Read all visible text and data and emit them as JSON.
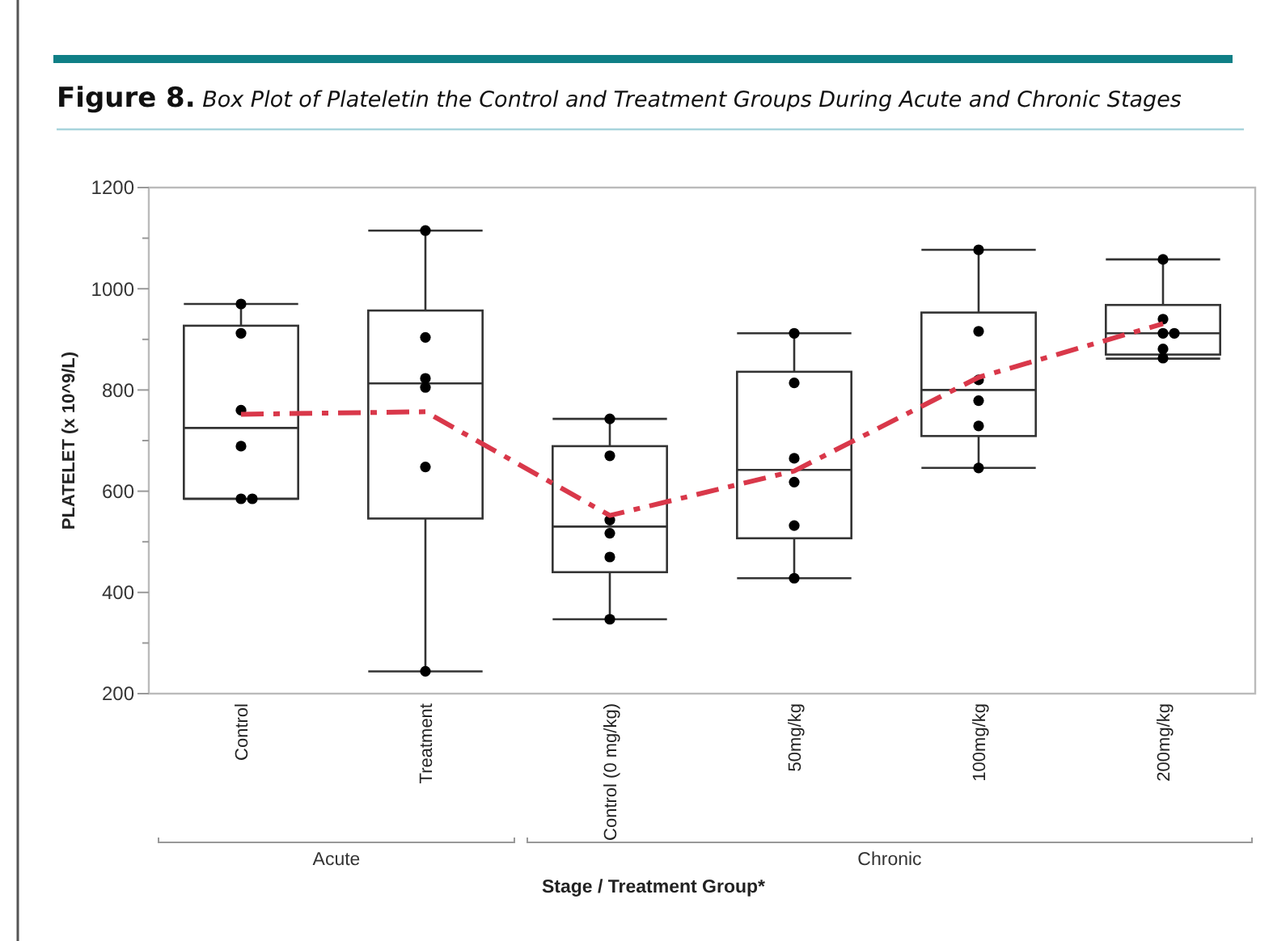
{
  "chart_data": {
    "type": "box",
    "title": "Figure 8. Box Plot of Plateletin the Control and Treatment Groups During Acute and Chronic Stages",
    "xlabel": "Stage / Treatment Group*",
    "ylabel": "PLATELET (x 10^9/L)",
    "categories": [
      "Control",
      "Treatment",
      "Control (0 mg/kg)",
      "50mg/kg",
      "100mg/kg",
      "200mg/kg"
    ],
    "boxes": [
      {
        "low": 585,
        "q1": 585,
        "median": 725,
        "q3": 927,
        "high": 970
      },
      {
        "low": 244,
        "q1": 546,
        "median": 813,
        "q3": 957,
        "high": 1115
      },
      {
        "low": 347,
        "q1": 440,
        "median": 530,
        "q3": 689,
        "high": 743
      },
      {
        "low": 428,
        "q1": 507,
        "median": 642,
        "q3": 836,
        "high": 912
      },
      {
        "low": 646,
        "q1": 709,
        "median": 800,
        "q3": 953,
        "high": 1077
      },
      {
        "low": 862,
        "q1": 870,
        "median": 912,
        "q3": 968,
        "high": 1058
      }
    ],
    "series": [
      {
        "type": "scatter",
        "color": "#000000",
        "marker": "circle",
        "x": [
          "Control",
          "Control",
          "Control",
          "Control",
          "Control",
          "Control",
          "Treatment",
          "Treatment",
          "Treatment",
          "Treatment",
          "Treatment",
          "Treatment",
          "Control (0 mg/kg)",
          "Control (0 mg/kg)",
          "Control (0 mg/kg)",
          "Control (0 mg/kg)",
          "Control (0 mg/kg)",
          "Control (0 mg/kg)",
          "50mg/kg",
          "50mg/kg",
          "50mg/kg",
          "50mg/kg",
          "50mg/kg",
          "50mg/kg",
          "100mg/kg",
          "100mg/kg",
          "100mg/kg",
          "100mg/kg",
          "100mg/kg",
          "100mg/kg",
          "200mg/kg",
          "200mg/kg",
          "200mg/kg",
          "200mg/kg",
          "200mg/kg",
          "200mg/kg"
        ],
        "values": [
          970,
          912,
          760,
          689,
          585,
          585,
          1115,
          904,
          823,
          805,
          648,
          244,
          743,
          670,
          543,
          517,
          470,
          347,
          912,
          814,
          665,
          618,
          532,
          428,
          1077,
          916,
          820,
          779,
          729,
          646,
          1058,
          940,
          912,
          912,
          881,
          863
        ]
      },
      {
        "type": "line",
        "color": "#d9384a",
        "line_style": "dashed",
        "marker": "none",
        "values": [
          752,
          757,
          552,
          640,
          825,
          931
        ]
      }
    ],
    "annotations": [
      "Acute",
      "Chronic"
    ],
    "ylim": [
      200,
      1200
    ],
    "yticks": [
      200,
      {
        "value": 300,
        "label": null
      },
      400,
      {
        "value": 500,
        "label": null
      },
      600,
      {
        "value": 700,
        "label": null
      },
      800,
      {
        "value": 900,
        "label": null
      },
      1000,
      {
        "value": 1100,
        "label": null
      },
      1200
    ],
    "grid": false
  }
}
